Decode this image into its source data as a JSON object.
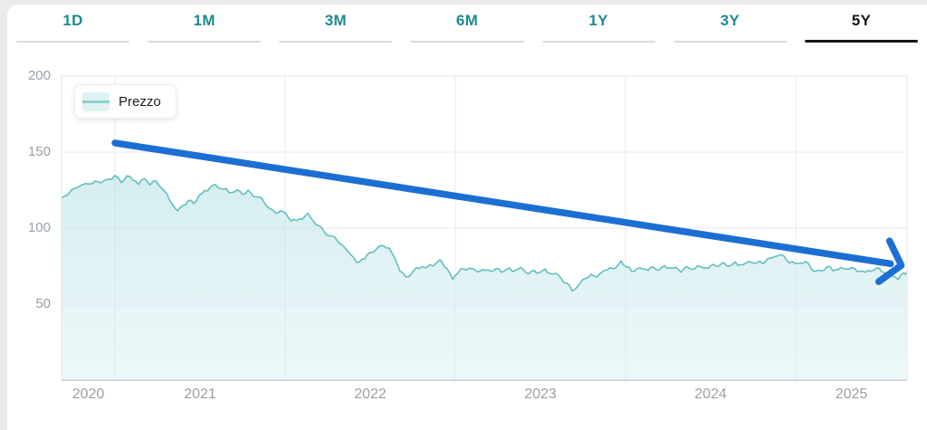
{
  "tabs": {
    "items": [
      {
        "label": "1D"
      },
      {
        "label": "1M"
      },
      {
        "label": "3M"
      },
      {
        "label": "6M"
      },
      {
        "label": "1Y"
      },
      {
        "label": "3Y"
      },
      {
        "label": "5Y"
      }
    ],
    "active": "5Y",
    "active_color": "#17181a",
    "inactive_color": "#1e8a90"
  },
  "chart_data": {
    "type": "area",
    "title": "",
    "legend_position": "top-left",
    "grid": true,
    "x_ticks": [
      "2020",
      "2021",
      "2022",
      "2023",
      "2024",
      "2025"
    ],
    "y_ticks": [
      "200",
      "150",
      "100",
      "50"
    ],
    "y_tick_values": [
      200,
      150,
      100,
      50
    ],
    "x_gridlines": [
      2021,
      2022,
      2023,
      2024,
      2025
    ],
    "xlim": [
      2020.686,
      2025.654
    ],
    "ylim": [
      0,
      200
    ],
    "series": [
      {
        "name": "Prezzo",
        "line_color": "#62bfbe",
        "fill_color": "#e3f4f6",
        "points": [
          [
            2020.686,
            120
          ],
          [
            2020.723,
            123
          ],
          [
            2020.761,
            126
          ],
          [
            2020.803,
            129
          ],
          [
            2020.846,
            128
          ],
          [
            2020.883,
            131
          ],
          [
            2020.92,
            129
          ],
          [
            2020.963,
            133
          ],
          [
            2021.0,
            134
          ],
          [
            2021.037,
            131
          ],
          [
            2021.069,
            134
          ],
          [
            2021.106,
            132
          ],
          [
            2021.138,
            130
          ],
          [
            2021.176,
            132
          ],
          [
            2021.207,
            129
          ],
          [
            2021.239,
            131
          ],
          [
            2021.271,
            127
          ],
          [
            2021.303,
            122
          ],
          [
            2021.335,
            116
          ],
          [
            2021.367,
            111
          ],
          [
            2021.399,
            115
          ],
          [
            2021.431,
            118
          ],
          [
            2021.463,
            117
          ],
          [
            2021.495,
            121
          ],
          [
            2021.527,
            124
          ],
          [
            2021.559,
            127
          ],
          [
            2021.59,
            128
          ],
          [
            2021.622,
            126
          ],
          [
            2021.654,
            125
          ],
          [
            2021.686,
            124
          ],
          [
            2021.718,
            125
          ],
          [
            2021.75,
            123
          ],
          [
            2021.782,
            124
          ],
          [
            2021.814,
            122
          ],
          [
            2021.846,
            120
          ],
          [
            2021.878,
            117
          ],
          [
            2021.91,
            113
          ],
          [
            2021.941,
            110
          ],
          [
            2021.973,
            112
          ],
          [
            2022.005,
            109
          ],
          [
            2022.037,
            106
          ],
          [
            2022.069,
            104
          ],
          [
            2022.101,
            107
          ],
          [
            2022.133,
            109
          ],
          [
            2022.165,
            105
          ],
          [
            2022.197,
            101
          ],
          [
            2022.229,
            98
          ],
          [
            2022.261,
            95
          ],
          [
            2022.293,
            93
          ],
          [
            2022.324,
            90
          ],
          [
            2022.356,
            86
          ],
          [
            2022.388,
            83
          ],
          [
            2022.42,
            77
          ],
          [
            2022.452,
            80
          ],
          [
            2022.484,
            82
          ],
          [
            2022.516,
            85
          ],
          [
            2022.548,
            87
          ],
          [
            2022.58,
            89
          ],
          [
            2022.612,
            86
          ],
          [
            2022.644,
            80
          ],
          [
            2022.676,
            72
          ],
          [
            2022.707,
            67
          ],
          [
            2022.739,
            70
          ],
          [
            2022.771,
            73
          ],
          [
            2022.803,
            75
          ],
          [
            2022.835,
            74
          ],
          [
            2022.867,
            76
          ],
          [
            2022.899,
            78
          ],
          [
            2022.92,
            79
          ],
          [
            2022.952,
            72
          ],
          [
            2022.984,
            67
          ],
          [
            2023.016,
            71
          ],
          [
            2023.048,
            73
          ],
          [
            2023.08,
            74
          ],
          [
            2023.112,
            72
          ],
          [
            2023.144,
            73
          ],
          [
            2023.176,
            71
          ],
          [
            2023.207,
            72
          ],
          [
            2023.239,
            73
          ],
          [
            2023.271,
            71
          ],
          [
            2023.303,
            73
          ],
          [
            2023.335,
            72
          ],
          [
            2023.367,
            74
          ],
          [
            2023.399,
            72
          ],
          [
            2023.431,
            71
          ],
          [
            2023.463,
            72
          ],
          [
            2023.495,
            71
          ],
          [
            2023.527,
            72
          ],
          [
            2023.559,
            71
          ],
          [
            2023.59,
            70
          ],
          [
            2023.622,
            67
          ],
          [
            2023.654,
            63
          ],
          [
            2023.686,
            60
          ],
          [
            2023.718,
            61
          ],
          [
            2023.75,
            66
          ],
          [
            2023.782,
            69
          ],
          [
            2023.814,
            68
          ],
          [
            2023.846,
            70
          ],
          [
            2023.878,
            72
          ],
          [
            2023.91,
            74
          ],
          [
            2023.941,
            73
          ],
          [
            2023.973,
            79
          ],
          [
            2024.005,
            74
          ],
          [
            2024.037,
            72
          ],
          [
            2024.069,
            73
          ],
          [
            2024.101,
            74
          ],
          [
            2024.133,
            73
          ],
          [
            2024.165,
            74
          ],
          [
            2024.197,
            73
          ],
          [
            2024.229,
            75
          ],
          [
            2024.261,
            74
          ],
          [
            2024.293,
            73
          ],
          [
            2024.324,
            72
          ],
          [
            2024.356,
            74
          ],
          [
            2024.388,
            73
          ],
          [
            2024.42,
            74
          ],
          [
            2024.452,
            75
          ],
          [
            2024.484,
            74
          ],
          [
            2024.516,
            76
          ],
          [
            2024.548,
            75
          ],
          [
            2024.58,
            76
          ],
          [
            2024.612,
            75
          ],
          [
            2024.644,
            77
          ],
          [
            2024.676,
            76
          ],
          [
            2024.707,
            77
          ],
          [
            2024.739,
            78
          ],
          [
            2024.771,
            77
          ],
          [
            2024.803,
            78
          ],
          [
            2024.835,
            79
          ],
          [
            2024.867,
            80
          ],
          [
            2024.899,
            83
          ],
          [
            2024.931,
            81
          ],
          [
            2024.963,
            78
          ],
          [
            2024.995,
            76
          ],
          [
            2025.027,
            78
          ],
          [
            2025.059,
            77
          ],
          [
            2025.09,
            74
          ],
          [
            2025.122,
            71
          ],
          [
            2025.154,
            73
          ],
          [
            2025.186,
            74
          ],
          [
            2025.218,
            73
          ],
          [
            2025.25,
            74
          ],
          [
            2025.282,
            73
          ],
          [
            2025.314,
            74
          ],
          [
            2025.346,
            73
          ],
          [
            2025.378,
            72
          ],
          [
            2025.41,
            71
          ],
          [
            2025.441,
            72
          ],
          [
            2025.473,
            73
          ],
          [
            2025.505,
            72
          ],
          [
            2025.537,
            70
          ],
          [
            2025.569,
            69
          ],
          [
            2025.601,
            67
          ],
          [
            2025.633,
            70
          ],
          [
            2025.654,
            71
          ]
        ]
      }
    ],
    "annotation": {
      "type": "arrow",
      "color": "#1c6fd2",
      "from": {
        "year": 2021.0,
        "price": 156
      },
      "to": {
        "year": 2025.62,
        "price": 75.5
      }
    }
  }
}
